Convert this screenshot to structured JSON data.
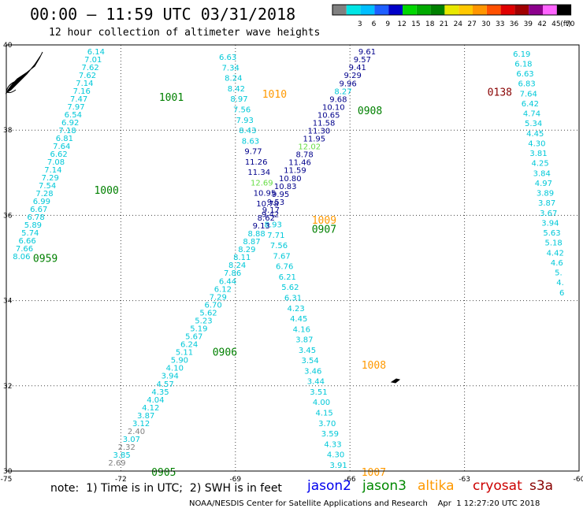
{
  "header": {
    "title": "00:00 – 11:59 UTC 03/31/2018",
    "subtitle": "12 hour collection of altimeter wave heights"
  },
  "legend": {
    "swatches": [
      {
        "label": "",
        "color": "#808080"
      },
      {
        "label": "3",
        "color": "#00e5e5"
      },
      {
        "label": "6",
        "color": "#00bfff"
      },
      {
        "label": "9",
        "color": "#1e5fff"
      },
      {
        "label": "12",
        "color": "#0000c8"
      },
      {
        "label": "15",
        "color": "#00d800"
      },
      {
        "label": "18",
        "color": "#00aa00"
      },
      {
        "label": "21",
        "color": "#008000"
      },
      {
        "label": "24",
        "color": "#e8e800"
      },
      {
        "label": "27",
        "color": "#ffc800"
      },
      {
        "label": "30",
        "color": "#ff9600"
      },
      {
        "label": "33",
        "color": "#ff5000"
      },
      {
        "label": "36",
        "color": "#e00000"
      },
      {
        "label": "39",
        "color": "#a00000"
      },
      {
        "label": "42",
        "color": "#8c008c"
      },
      {
        "label": "45",
        "color": "#ff64ff"
      },
      {
        "label": "70",
        "color": "#000000"
      }
    ],
    "unit": "(ft)"
  },
  "footer": {
    "note": "note:  1) Time is in UTC;  2) SWH is in feet",
    "satellites": [
      {
        "name": "jason2",
        "color": "#0000ee"
      },
      {
        "name": "jason3",
        "color": "#008800"
      },
      {
        "name": "altika",
        "color": "#ff9900"
      },
      {
        "name": "cryosat",
        "color": "#cc0000"
      },
      {
        "name": "s3a",
        "color": "#880000"
      }
    ],
    "credit": "NOAA/NESDIS Center for Satellite Applications and Research    Apr  1 12:27:20 UTC 2018"
  },
  "chart_data": {
    "type": "scatter",
    "xlim": [
      -75,
      -60
    ],
    "ylim": [
      30,
      40
    ],
    "x_ticks": [
      "-75",
      "-72",
      "-69",
      "-66",
      "-63",
      "-60"
    ],
    "y_ticks": [
      "30",
      "32",
      "34",
      "36",
      "38",
      "40"
    ],
    "grid": true,
    "point_colors": {
      "lt3": "#808080",
      "3to6": "#00c8d8",
      "9to12": "#00008b",
      "12to15": "#66dd44"
    },
    "time_labels": [
      {
        "text": "1001",
        "lon": -71.0,
        "lat": 38.78,
        "color": "#008000"
      },
      {
        "text": "1000",
        "lon": -72.7,
        "lat": 36.6,
        "color": "#008000"
      },
      {
        "text": "0959",
        "lon": -74.3,
        "lat": 35.0,
        "color": "#008000"
      },
      {
        "text": "1010",
        "lon": -68.3,
        "lat": 38.85,
        "color": "#ff9900"
      },
      {
        "text": "0908",
        "lon": -65.8,
        "lat": 38.47,
        "color": "#008000"
      },
      {
        "text": "1009",
        "lon": -67.0,
        "lat": 35.9,
        "color": "#ff9900"
      },
      {
        "text": "0907",
        "lon": -67.0,
        "lat": 35.68,
        "color": "#008000"
      },
      {
        "text": "0906",
        "lon": -69.6,
        "lat": 32.8,
        "color": "#008000"
      },
      {
        "text": "1008",
        "lon": -65.7,
        "lat": 32.5,
        "color": "#ff9900"
      },
      {
        "text": "0905",
        "lon": -71.2,
        "lat": 29.98,
        "color": "#008000"
      },
      {
        "text": "1007",
        "lon": -65.7,
        "lat": 29.98,
        "color": "#ff9900"
      },
      {
        "text": "0138",
        "lon": -62.4,
        "lat": 38.9,
        "color": "#880000"
      }
    ],
    "tracks": [
      {
        "name": "jason3 0959-1001",
        "start": [
          -72.65,
          39.85
        ],
        "end": [
          -74.6,
          35.05
        ],
        "values": [
          "6.14",
          "7.01",
          "7.62",
          "7.62",
          "7.14",
          "7.16",
          "7.47",
          "7.97",
          "6.54",
          "6.92",
          "7.18",
          "6.81",
          "7.64",
          "6.62",
          "7.08",
          "7.14",
          "7.29",
          "7.54",
          "7.28",
          "6.99",
          "6.67",
          "6.78",
          "5.89",
          "5.74",
          "6.66",
          "7.66",
          "8.06"
        ],
        "colors": [
          "3to6",
          "3to6",
          "3to6",
          "3to6",
          "3to6",
          "3to6",
          "3to6",
          "3to6",
          "3to6",
          "3to6",
          "3to6",
          "3to6",
          "3to6",
          "3to6",
          "3to6",
          "3to6",
          "3to6",
          "3to6",
          "3to6",
          "3to6",
          "3to6",
          "3to6",
          "3to6",
          "3to6",
          "3to6",
          "3to6",
          "3to6"
        ]
      },
      {
        "name": "altika 1007-1010",
        "start": [
          -69.2,
          39.72
        ],
        "end": [
          -66.3,
          30.15
        ],
        "values": [
          "6.63",
          "7.34",
          "8.24",
          "8.42",
          "8.97",
          "7.56",
          "7.93",
          "8.43",
          "8.63",
          "9.77",
          "11.26",
          "11.34",
          "12.69",
          "10.95",
          "10.78",
          "9.42",
          "8.93",
          "7.71",
          "7.56",
          "7.67",
          "6.76",
          "6.21",
          "5.62",
          "6.31",
          "4.23",
          "4.45",
          "4.16",
          "3.87",
          "3.45",
          "3.54",
          "3.46",
          "3.44",
          "3.51",
          "4.00",
          "4.15",
          "3.70",
          "3.59",
          "4.33",
          "4.30",
          "3.91"
        ],
        "colors": [
          "3to6",
          "3to6",
          "3to6",
          "3to6",
          "3to6",
          "3to6",
          "3to6",
          "3to6",
          "3to6",
          "9to12",
          "9to12",
          "9to12",
          "12to15",
          "9to12",
          "9to12",
          "9to12",
          "3to6",
          "3to6",
          "3to6",
          "3to6",
          "3to6",
          "3to6",
          "3to6",
          "3to6",
          "3to6",
          "3to6",
          "3to6",
          "3to6",
          "3to6",
          "3to6",
          "3to6",
          "3to6",
          "3to6",
          "3to6",
          "3to6",
          "3to6",
          "3to6",
          "3to6",
          "3to6",
          "3to6"
        ]
      },
      {
        "name": "jason3 0905-0908",
        "start": [
          -65.55,
          39.85
        ],
        "end": [
          -72.1,
          30.2
        ],
        "values": [
          "9.61",
          "9.57",
          "9.41",
          "9.29",
          "9.96",
          "8.27",
          "9.68",
          "10.10",
          "10.65",
          "11.58",
          "11.30",
          "11.95",
          "12.02",
          "8.78",
          "11.46",
          "11.59",
          "10.80",
          "10.83",
          "9.95",
          "9.53",
          "9.17",
          "8.62",
          "9.13",
          "8.88",
          "8.87",
          "8.29",
          "8.11",
          "8.24",
          "7.86",
          "6.44",
          "6.12",
          "7.29",
          "6.70",
          "5.62",
          "5.23",
          "5.19",
          "5.67",
          "6.24",
          "5.11",
          "5.90",
          "4.10",
          "3.94",
          "4.57",
          "4.35",
          "4.04",
          "4.12",
          "3.87",
          "3.12",
          "2.40",
          "3.07",
          "2.32",
          "3.85",
          "2.69"
        ],
        "colors": [
          "9to12",
          "9to12",
          "9to12",
          "9to12",
          "9to12",
          "3to6",
          "9to12",
          "9to12",
          "9to12",
          "9to12",
          "9to12",
          "9to12",
          "12to15",
          "9to12",
          "9to12",
          "9to12",
          "9to12",
          "9to12",
          "9to12",
          "9to12",
          "9to12",
          "9to12",
          "9to12",
          "3to6",
          "3to6",
          "3to6",
          "3to6",
          "3to6",
          "3to6",
          "3to6",
          "3to6",
          "3to6",
          "3to6",
          "3to6",
          "3to6",
          "3to6",
          "3to6",
          "3to6",
          "3to6",
          "3to6",
          "3to6",
          "3to6",
          "3to6",
          "3to6",
          "3to6",
          "3to6",
          "3to6",
          "3to6",
          "lt3",
          "3to6",
          "lt3",
          "3to6",
          "lt3"
        ]
      },
      {
        "name": "s3a 0138",
        "start": [
          -61.5,
          39.8
        ],
        "end": [
          -60.45,
          34.2
        ],
        "values": [
          "6.19",
          "6.18",
          "6.63",
          "6.83",
          "7.64",
          "6.42",
          "4.74",
          "5.34",
          "4.45",
          "4.30",
          "3.81",
          "4.25",
          "3.84",
          "4.97",
          "3.89",
          "3.87",
          "3.67",
          "3.94",
          "5.63",
          "5.18",
          "4.42",
          "4.6",
          "5.",
          "4.",
          "6"
        ],
        "colors": [
          "3to6",
          "3to6",
          "3to6",
          "3to6",
          "3to6",
          "3to6",
          "3to6",
          "3to6",
          "3to6",
          "3to6",
          "3to6",
          "3to6",
          "3to6",
          "3to6",
          "3to6",
          "3to6",
          "3to6",
          "3to6",
          "3to6",
          "3to6",
          "3to6",
          "3to6",
          "3to6",
          "3to6",
          "3to6"
        ]
      }
    ]
  }
}
